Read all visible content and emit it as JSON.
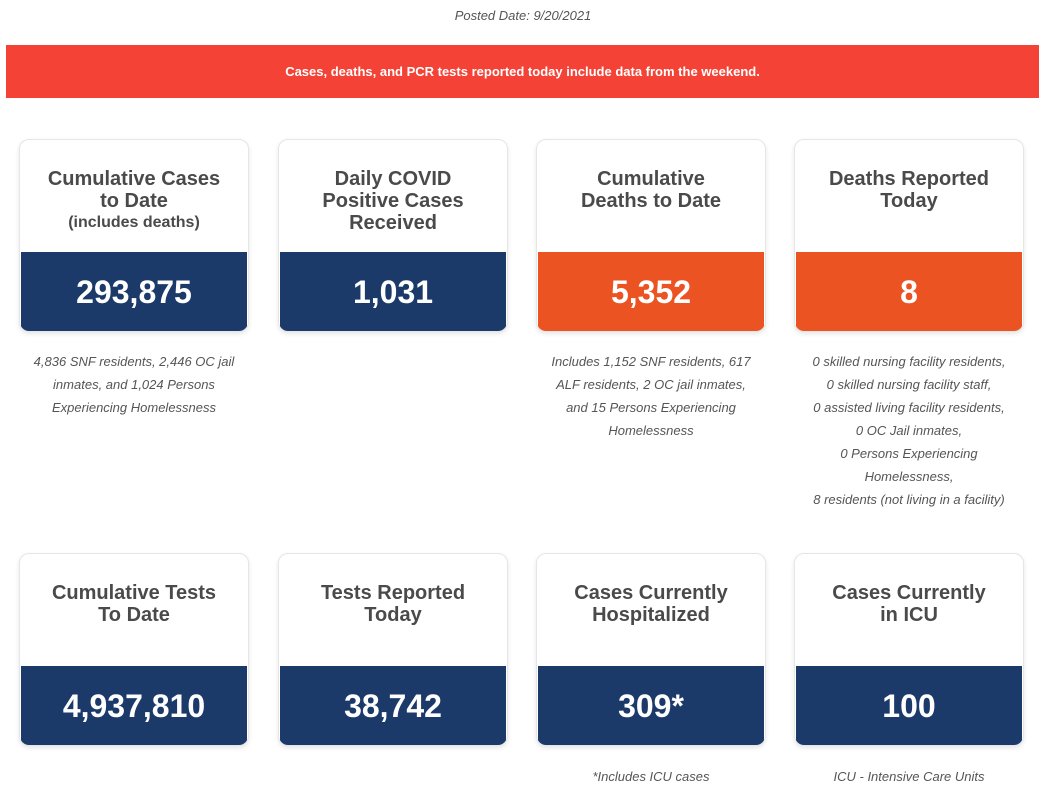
{
  "posted_date": "Posted Date: 9/20/2021",
  "banner": "Cases, deaths, and PCR tests reported today include data from the weekend.",
  "colors": {
    "banner": "#f44336",
    "navy": "#1b3a6a",
    "orange": "#ec5322"
  },
  "cards": [
    {
      "title_lines": [
        "Cumulative Cases",
        "to Date"
      ],
      "subtitle": "(includes deaths)",
      "value": "293,875",
      "note_lines": [
        "4,836 SNF residents, 2,446 OC jail",
        "inmates, and 1,024 Persons",
        "Experiencing Homelessness"
      ]
    },
    {
      "title_lines": [
        "Daily COVID",
        "Positive Cases",
        "Received"
      ],
      "value": "1,031"
    },
    {
      "title_lines": [
        "Cumulative",
        "Deaths to Date"
      ],
      "value": "5,352",
      "note_lines": [
        "Includes 1,152 SNF residents, 617",
        "ALF residents, 2 OC jail inmates,",
        "and 15 Persons Experiencing",
        "Homelessness"
      ]
    },
    {
      "title_lines": [
        "Deaths Reported",
        "Today"
      ],
      "value": "8",
      "note_lines": [
        "0 skilled nursing facility residents,",
        "0 skilled nursing facility staff,",
        "0 assisted living facility residents,",
        "0 OC Jail inmates,",
        "0 Persons Experiencing",
        "Homelessness,",
        "8 residents (not living in a facility)"
      ]
    },
    {
      "title_lines": [
        "Cumulative Tests",
        "To Date"
      ],
      "value": "4,937,810"
    },
    {
      "title_lines": [
        "Tests Reported",
        "Today"
      ],
      "value": "38,742"
    },
    {
      "title_lines": [
        "Cases Currently",
        "Hospitalized"
      ],
      "value": "309*",
      "note_lines": [
        "*Includes ICU cases"
      ]
    },
    {
      "title_lines": [
        "Cases Currently",
        "in ICU"
      ],
      "value": "100",
      "note_lines": [
        "ICU - Intensive Care Units"
      ]
    }
  ]
}
